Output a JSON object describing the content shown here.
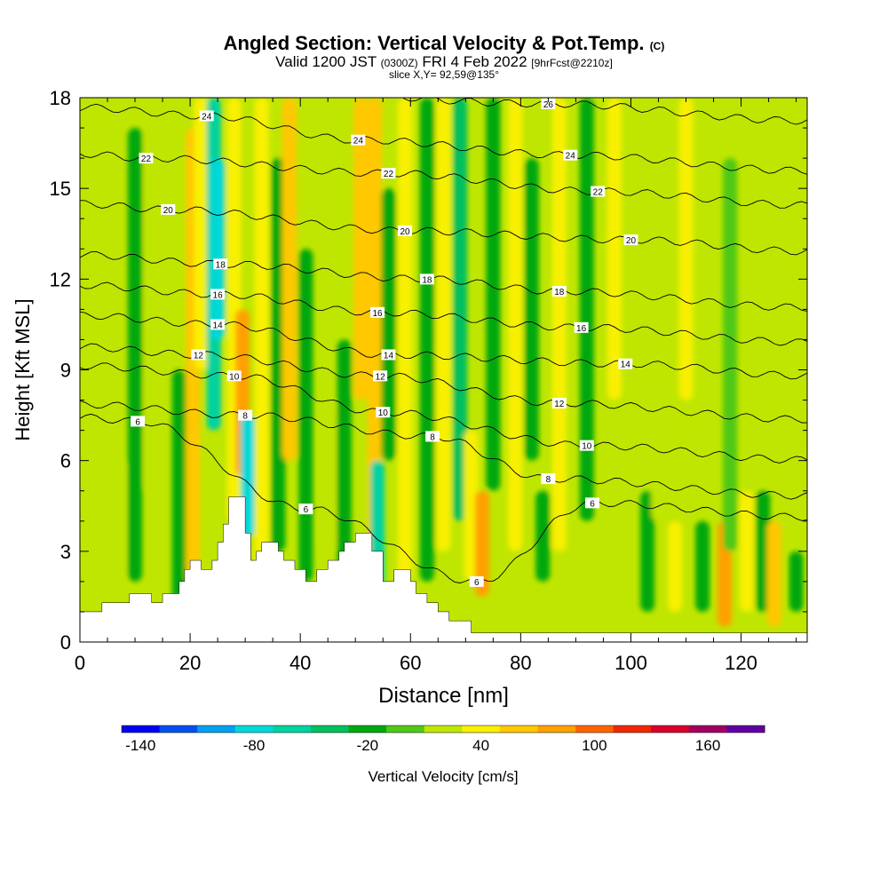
{
  "title": {
    "main": "Angled Section: Vertical Velocity & Pot.Temp.",
    "units_tag": "(C)",
    "valid_time": "Valid 1200 JST",
    "utc_tag": "(0300Z)",
    "date": "FRI 4 Feb 2022",
    "forecast_tag": "[9hrFcst@2210z]",
    "slice": "slice X,Y= 92,59@135°"
  },
  "chart_data": {
    "type": "heatmap",
    "xlabel": "Distance [nm]",
    "ylabel": "Height [Kft MSL]",
    "xlim": [
      0,
      132
    ],
    "ylim": [
      0,
      18
    ],
    "x_ticks": [
      0,
      20,
      40,
      60,
      80,
      100,
      120
    ],
    "y_ticks": [
      0,
      3,
      6,
      9,
      12,
      15,
      18
    ],
    "grid": false,
    "colorbar": {
      "label": "Vertical Velocity [cm/s]",
      "placement": "bottom",
      "tick_labels": [
        -140,
        -80,
        -20,
        40,
        100,
        160
      ],
      "bins": [
        {
          "from": -150,
          "to": -130,
          "color": "#0000f0"
        },
        {
          "from": -130,
          "to": -110,
          "color": "#0050f0"
        },
        {
          "from": -110,
          "to": -90,
          "color": "#00a0f0"
        },
        {
          "from": -90,
          "to": -70,
          "color": "#00d8d8"
        },
        {
          "from": -70,
          "to": -50,
          "color": "#00d2a0"
        },
        {
          "from": -50,
          "to": -30,
          "color": "#00c060"
        },
        {
          "from": -30,
          "to": -10,
          "color": "#00a810"
        },
        {
          "from": -10,
          "to": 10,
          "color": "#50c818"
        },
        {
          "from": 10,
          "to": 30,
          "color": "#bfe600"
        },
        {
          "from": 30,
          "to": 50,
          "color": "#f8f000"
        },
        {
          "from": 50,
          "to": 70,
          "color": "#ffc800"
        },
        {
          "from": 70,
          "to": 90,
          "color": "#ffa000"
        },
        {
          "from": 90,
          "to": 110,
          "color": "#ff6400"
        },
        {
          "from": 110,
          "to": 130,
          "color": "#f02800"
        },
        {
          "from": 130,
          "to": 150,
          "color": "#d8002c"
        },
        {
          "from": 150,
          "to": 170,
          "color": "#a00060"
        },
        {
          "from": 170,
          "to": 190,
          "color": "#6000a0"
        }
      ]
    },
    "field_features": [
      {
        "x": 2,
        "z0": 0,
        "z1": 18,
        "value": 10
      },
      {
        "x": 7,
        "z0": 1,
        "z1": 6,
        "value": 28
      },
      {
        "x": 10,
        "z0": 2,
        "z1": 17,
        "value": -12
      },
      {
        "x": 13,
        "z0": 5,
        "z1": 17,
        "value": 25
      },
      {
        "x": 18,
        "z0": 1,
        "z1": 9,
        "value": -15
      },
      {
        "x": 20.5,
        "z0": 2,
        "z1": 17,
        "value": 62
      },
      {
        "x": 22,
        "z0": 9,
        "z1": 18,
        "value": 45
      },
      {
        "x": 24.3,
        "z0": 7,
        "z1": 18,
        "value": -55
      },
      {
        "x": 25,
        "z0": 10,
        "z1": 16,
        "value": -75
      },
      {
        "x": 28,
        "z0": 4,
        "z1": 18,
        "value": 48
      },
      {
        "x": 29.5,
        "z0": 5.5,
        "z1": 11,
        "value": 80
      },
      {
        "x": 30.5,
        "z0": 3.5,
        "z1": 7.5,
        "value": -72
      },
      {
        "x": 33,
        "z0": 2,
        "z1": 18,
        "value": 32
      },
      {
        "x": 36,
        "z0": 3,
        "z1": 16,
        "value": -12
      },
      {
        "x": 38,
        "z0": 6,
        "z1": 18,
        "value": 58
      },
      {
        "x": 41,
        "z0": 2,
        "z1": 13,
        "value": -18
      },
      {
        "x": 45,
        "z0": 3,
        "z1": 8,
        "value": 20
      },
      {
        "x": 48,
        "z0": 2.5,
        "z1": 10,
        "value": -15
      },
      {
        "x": 51,
        "z0": 8,
        "z1": 18,
        "value": 60
      },
      {
        "x": 53.5,
        "z0": 2,
        "z1": 18,
        "value": 62
      },
      {
        "x": 54,
        "z0": 1.8,
        "z1": 6,
        "value": -65
      },
      {
        "x": 56,
        "z0": 6,
        "z1": 15,
        "value": -15
      },
      {
        "x": 59,
        "z0": 2,
        "z1": 18,
        "value": 30
      },
      {
        "x": 63,
        "z0": 2,
        "z1": 18,
        "value": -22
      },
      {
        "x": 66,
        "z0": 3,
        "z1": 18,
        "value": 40
      },
      {
        "x": 69,
        "z0": 4,
        "z1": 18,
        "value": -40
      },
      {
        "x": 71,
        "z0": 2,
        "z1": 7,
        "value": 42
      },
      {
        "x": 73,
        "z0": 1.5,
        "z1": 5,
        "value": 78
      },
      {
        "x": 75,
        "z0": 5,
        "z1": 18,
        "value": -30
      },
      {
        "x": 79,
        "z0": 3,
        "z1": 18,
        "value": 42
      },
      {
        "x": 82,
        "z0": 6,
        "z1": 16,
        "value": -22
      },
      {
        "x": 84,
        "z0": 2,
        "z1": 5,
        "value": -12
      },
      {
        "x": 87,
        "z0": 3,
        "z1": 18,
        "value": 32
      },
      {
        "x": 92,
        "z0": 4,
        "z1": 18,
        "value": -15
      },
      {
        "x": 97,
        "z0": 8,
        "z1": 18,
        "value": 34
      },
      {
        "x": 103,
        "z0": 1,
        "z1": 5,
        "value": -12
      },
      {
        "x": 105,
        "z0": 4,
        "z1": 13,
        "value": 14
      },
      {
        "x": 108,
        "z0": 1,
        "z1": 4,
        "value": 42
      },
      {
        "x": 110,
        "z0": 8,
        "z1": 18,
        "value": 48
      },
      {
        "x": 113,
        "z0": 1,
        "z1": 4,
        "value": -15
      },
      {
        "x": 117,
        "z0": 0.5,
        "z1": 4,
        "value": 70
      },
      {
        "x": 118,
        "z0": 3,
        "z1": 16,
        "value": -10
      },
      {
        "x": 121,
        "z0": 1,
        "z1": 5,
        "value": 40
      },
      {
        "x": 124,
        "z0": 1,
        "z1": 5,
        "value": -12
      },
      {
        "x": 126,
        "z0": 0.5,
        "z1": 4,
        "value": 50
      },
      {
        "x": 130,
        "z0": 1,
        "z1": 3,
        "value": -25
      }
    ],
    "terrain": [
      [
        0,
        1
      ],
      [
        4,
        1
      ],
      [
        4,
        1.3
      ],
      [
        9,
        1.3
      ],
      [
        9,
        1.6
      ],
      [
        13,
        1.6
      ],
      [
        13,
        1.3
      ],
      [
        15,
        1.3
      ],
      [
        15,
        1.6
      ],
      [
        18,
        1.6
      ],
      [
        18,
        2
      ],
      [
        19,
        2
      ],
      [
        19,
        2.4
      ],
      [
        20,
        2.4
      ],
      [
        20,
        2.7
      ],
      [
        22,
        2.7
      ],
      [
        22,
        2.4
      ],
      [
        24,
        2.4
      ],
      [
        24,
        2.7
      ],
      [
        25,
        2.7
      ],
      [
        25,
        3.3
      ],
      [
        26,
        3.3
      ],
      [
        26,
        3.9
      ],
      [
        27,
        3.9
      ],
      [
        27,
        4.8
      ],
      [
        30,
        4.8
      ],
      [
        30,
        3.6
      ],
      [
        31,
        3.6
      ],
      [
        31,
        2.7
      ],
      [
        32,
        2.7
      ],
      [
        32,
        3
      ],
      [
        33,
        3
      ],
      [
        33,
        3.3
      ],
      [
        36,
        3.3
      ],
      [
        36,
        3
      ],
      [
        37,
        3
      ],
      [
        37,
        2.7
      ],
      [
        39,
        2.7
      ],
      [
        39,
        2.4
      ],
      [
        41,
        2.4
      ],
      [
        41,
        2
      ],
      [
        43,
        2
      ],
      [
        43,
        2.4
      ],
      [
        45,
        2.4
      ],
      [
        45,
        2.7
      ],
      [
        47,
        2.7
      ],
      [
        47,
        3
      ],
      [
        48,
        3
      ],
      [
        48,
        3.3
      ],
      [
        50,
        3.3
      ],
      [
        50,
        3.6
      ],
      [
        53,
        3.6
      ],
      [
        53,
        3
      ],
      [
        55,
        3
      ],
      [
        55,
        2
      ],
      [
        57,
        2
      ],
      [
        57,
        2.4
      ],
      [
        60,
        2.4
      ],
      [
        60,
        2
      ],
      [
        61,
        2
      ],
      [
        61,
        1.6
      ],
      [
        63,
        1.6
      ],
      [
        63,
        1.3
      ],
      [
        65,
        1.3
      ],
      [
        65,
        1
      ],
      [
        67,
        1
      ],
      [
        67,
        0.7
      ],
      [
        71,
        0.7
      ],
      [
        71,
        0.3
      ],
      [
        132,
        0.3
      ]
    ],
    "isentropes": [
      {
        "value": 6,
        "label_positions": [
          [
            10.5,
            7.3
          ],
          [
            41,
            4.4
          ],
          [
            72,
            2
          ],
          [
            93,
            4.6
          ]
        ]
      },
      {
        "value": 8,
        "label_positions": [
          [
            30,
            7.5
          ],
          [
            64,
            6.8
          ],
          [
            85,
            5.4
          ]
        ]
      },
      {
        "value": 10,
        "label_positions": [
          [
            28,
            8.8
          ],
          [
            55,
            7.6
          ],
          [
            92,
            6.5
          ]
        ]
      },
      {
        "value": 12,
        "label_positions": [
          [
            21.5,
            9.5
          ],
          [
            54.5,
            8.8
          ],
          [
            87,
            7.9
          ]
        ]
      },
      {
        "value": 14,
        "label_positions": [
          [
            25,
            10.5
          ],
          [
            56,
            9.5
          ],
          [
            99,
            9.2
          ]
        ]
      },
      {
        "value": 16,
        "label_positions": [
          [
            25,
            11.5
          ],
          [
            54,
            10.9
          ],
          [
            91,
            10.4
          ]
        ]
      },
      {
        "value": 18,
        "label_positions": [
          [
            25.5,
            12.5
          ],
          [
            63,
            12
          ],
          [
            87,
            11.6
          ]
        ]
      },
      {
        "value": 20,
        "label_positions": [
          [
            16,
            14.3
          ],
          [
            59,
            13.6
          ],
          [
            100,
            13.3
          ]
        ]
      },
      {
        "value": 22,
        "label_positions": [
          [
            12,
            16
          ],
          [
            56,
            15.5
          ],
          [
            94,
            14.9
          ]
        ]
      },
      {
        "value": 24,
        "label_positions": [
          [
            23,
            17.4
          ],
          [
            50.5,
            16.6
          ],
          [
            89,
            16.1
          ]
        ]
      },
      {
        "value": 26,
        "label_positions": [
          [
            85,
            17.8
          ]
        ]
      }
    ]
  }
}
